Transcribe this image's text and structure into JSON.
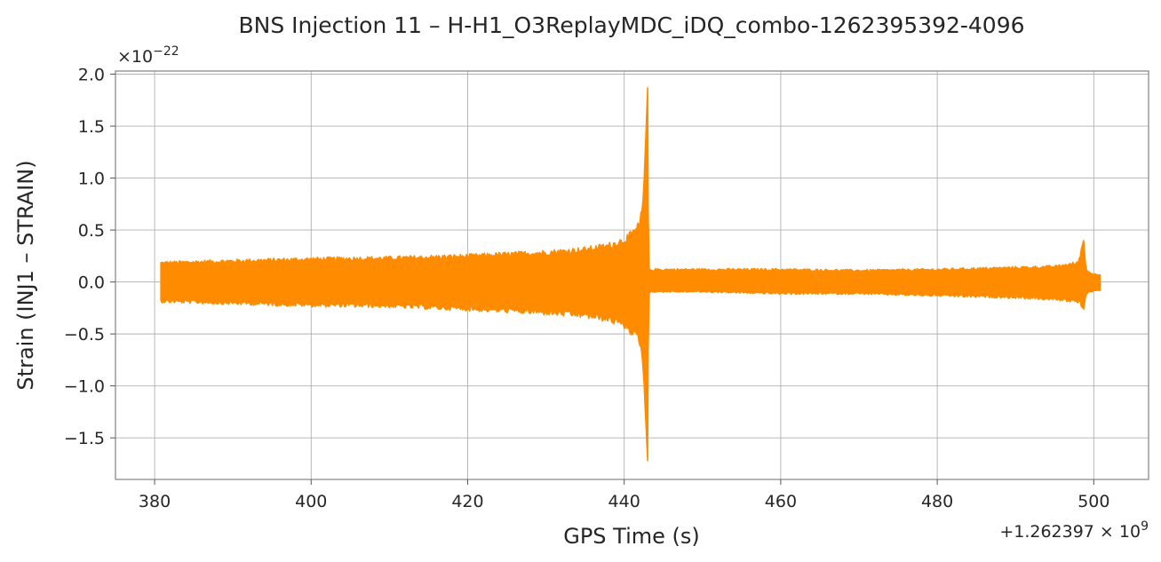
{
  "chart_data": {
    "type": "line",
    "title": "BNS Injection 11 – H-H1_O3ReplayMDC_iDQ_combo-1262395392-4096",
    "xlabel": "GPS Time (s)",
    "ylabel": "Strain (INJ1 – STRAIN)",
    "x_offset_label": "+1.262397 × 10",
    "x_offset_exponent": "9",
    "y_scale_label": "×10",
    "y_scale_exponent": "−22",
    "xlim": [
      375,
      507
    ],
    "ylim": [
      -1.9,
      2.03
    ],
    "grid": true,
    "color": "#ff8c00",
    "x_ticks": [
      380,
      400,
      420,
      440,
      460,
      480,
      500
    ],
    "x_tick_labels": [
      "380",
      "400",
      "420",
      "440",
      "460",
      "480",
      "500"
    ],
    "y_ticks": [
      -1.5,
      -1.0,
      -0.5,
      0.0,
      0.5,
      1.0,
      1.5,
      2.0
    ],
    "y_tick_labels": [
      "−1.5",
      "−1.0",
      "−0.5",
      "0.0",
      "0.5",
      "1.0",
      "1.5",
      "2.0"
    ],
    "series": [
      {
        "envelope_upper": {
          "x": [
            380.8,
            390,
            400,
            410,
            420,
            425,
            430,
            435,
            438,
            440,
            441,
            442,
            442.5,
            443.0,
            443.1,
            443.3,
            444,
            450,
            460,
            470,
            480,
            490,
            495,
            498,
            498.7,
            499,
            500,
            500.8
          ],
          "y": [
            0.2,
            0.22,
            0.24,
            0.25,
            0.27,
            0.29,
            0.31,
            0.34,
            0.38,
            0.44,
            0.5,
            0.6,
            0.9,
            1.87,
            0.1,
            0.12,
            0.13,
            0.13,
            0.13,
            0.12,
            0.13,
            0.15,
            0.16,
            0.2,
            0.4,
            0.12,
            0.08,
            0.08
          ]
        },
        "envelope_lower": {
          "x": [
            380.8,
            390,
            400,
            410,
            420,
            425,
            430,
            435,
            438,
            440,
            441,
            442,
            442.5,
            443.0,
            443.1,
            443.3,
            444,
            450,
            460,
            470,
            480,
            490,
            495,
            498,
            498.7,
            499,
            500,
            500.8
          ],
          "y": [
            -0.2,
            -0.22,
            -0.24,
            -0.25,
            -0.28,
            -0.3,
            -0.32,
            -0.35,
            -0.39,
            -0.45,
            -0.52,
            -0.62,
            -0.95,
            -1.72,
            -0.1,
            -0.1,
            -0.1,
            -0.1,
            -0.12,
            -0.12,
            -0.14,
            -0.16,
            -0.18,
            -0.2,
            -0.26,
            -0.12,
            -0.09,
            -0.09
          ]
        }
      }
    ]
  }
}
